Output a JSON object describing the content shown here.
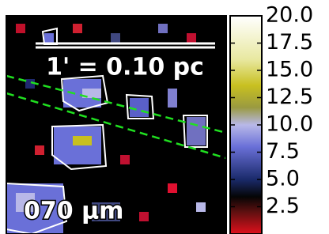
{
  "chart_data": {
    "type": "heatmap",
    "annotations": {
      "scale_bar": "1' = 0.10 pc",
      "band": "070 μm"
    },
    "colorbar": {
      "lim": [
        0,
        20
      ],
      "ticks": [
        {
          "value": 2.5,
          "label": "2.5"
        },
        {
          "value": 5,
          "label": "5.0"
        },
        {
          "value": 7.5,
          "label": "7.5"
        },
        {
          "value": 10,
          "label": "10.0"
        },
        {
          "value": 12.5,
          "label": "12.5"
        },
        {
          "value": 15,
          "label": "15.0"
        },
        {
          "value": 17.5,
          "label": "17.5"
        },
        {
          "value": 20,
          "label": "20.0"
        }
      ]
    }
  }
}
